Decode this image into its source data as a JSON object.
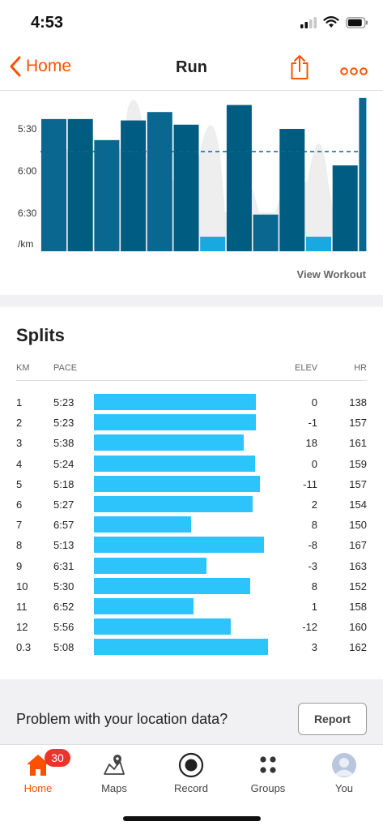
{
  "status": {
    "time": "4:53"
  },
  "nav": {
    "back_label": "Home",
    "title": "Run"
  },
  "colors": {
    "accent": "#fc5200",
    "split_bar": "#2dc4fb",
    "chart_bar_dark": "#005c81",
    "chart_bar_light": "#1aa8e0",
    "elevation": "#eeeeee"
  },
  "chart": {
    "y_ticks": [
      "5:30",
      "6:00",
      "6:30",
      "/km"
    ],
    "view_workout": "View Workout"
  },
  "chart_data": {
    "type": "bar",
    "title": "",
    "categories": [
      "1",
      "2",
      "3",
      "4",
      "5",
      "6",
      "7",
      "8",
      "9",
      "10",
      "11",
      "12",
      "0.3"
    ],
    "series": [
      {
        "values": [
          "5:23",
          "5:23",
          "5:38",
          "5:24",
          "5:18",
          "5:27",
          "6:57",
          "5:13",
          "6:31",
          "5:30",
          "6:52",
          "5:56",
          "5:08"
        ]
      }
    ],
    "y_axis": "pace min/km (inverted, faster at top)",
    "average_line": "dashed",
    "background_area": "elevation profile (light gray)"
  },
  "splits": {
    "title": "Splits",
    "headers": {
      "km": "KM",
      "pace": "PACE",
      "elev": "ELEV",
      "hr": "HR"
    },
    "rows": [
      {
        "km": "1",
        "pace": "5:23",
        "elev": "0",
        "hr": "138"
      },
      {
        "km": "2",
        "pace": "5:23",
        "elev": "-1",
        "hr": "157"
      },
      {
        "km": "3",
        "pace": "5:38",
        "elev": "18",
        "hr": "161"
      },
      {
        "km": "4",
        "pace": "5:24",
        "elev": "0",
        "hr": "159"
      },
      {
        "km": "5",
        "pace": "5:18",
        "elev": "-11",
        "hr": "157"
      },
      {
        "km": "6",
        "pace": "5:27",
        "elev": "2",
        "hr": "154"
      },
      {
        "km": "7",
        "pace": "6:57",
        "elev": "8",
        "hr": "150"
      },
      {
        "km": "8",
        "pace": "5:13",
        "elev": "-8",
        "hr": "167"
      },
      {
        "km": "9",
        "pace": "6:31",
        "elev": "-3",
        "hr": "163"
      },
      {
        "km": "10",
        "pace": "5:30",
        "elev": "8",
        "hr": "152"
      },
      {
        "km": "11",
        "pace": "6:52",
        "elev": "1",
        "hr": "158"
      },
      {
        "km": "12",
        "pace": "5:56",
        "elev": "-12",
        "hr": "160"
      },
      {
        "km": "0.3",
        "pace": "5:08",
        "elev": "3",
        "hr": "162"
      }
    ]
  },
  "report": {
    "text": "Problem with your location data?",
    "button": "Report"
  },
  "tabs": [
    {
      "label": "Home",
      "icon": "home-icon",
      "active": true,
      "badge": "30"
    },
    {
      "label": "Maps",
      "icon": "map-pin-icon"
    },
    {
      "label": "Record",
      "icon": "record-icon"
    },
    {
      "label": "Groups",
      "icon": "groups-icon"
    },
    {
      "label": "You",
      "icon": "avatar-icon"
    }
  ]
}
